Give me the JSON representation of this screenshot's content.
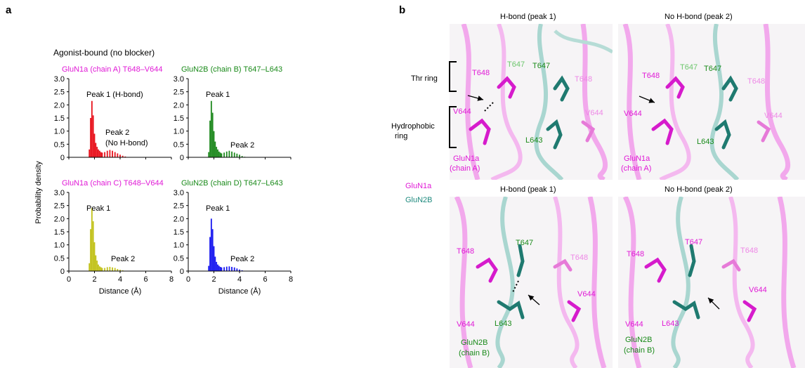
{
  "panel_a": {
    "letter": "a",
    "condition": "Agonist-bound (no blocker)",
    "ylabel": "Probability density",
    "xlabel": "Distance (Å)",
    "subplots": [
      {
        "title": "GluN1a (chain A) T648–V644",
        "color": "#e8141e",
        "title_color": "#e01ad6",
        "peak1_label": "Peak 1 (H-bond)",
        "peak2_label_line1": "Peak 2",
        "peak2_label_line2": "(No H-bond)"
      },
      {
        "title": "GluN2B (chain B) T647–L643",
        "color": "#208a20",
        "title_color": "#1a8a1a",
        "peak1_label": "Peak 1",
        "peak2_label_line1": "Peak 2",
        "peak2_label_line2": ""
      },
      {
        "title": "GluN1a (chain C) T648–V644",
        "color": "#c2c21c",
        "title_color": "#e01ad6",
        "peak1_label": "Peak 1",
        "peak2_label_line1": "Peak 2",
        "peak2_label_line2": ""
      },
      {
        "title": "GluN2B (chain D) T647–L643",
        "color": "#1a1af0",
        "title_color": "#1a8a1a",
        "peak1_label": "Peak 1",
        "peak2_label_line1": "Peak 2",
        "peak2_label_line2": ""
      }
    ],
    "y_ticks": [
      "0",
      "0.5",
      "1.0",
      "1.5",
      "2.0",
      "2.5",
      "3.0"
    ],
    "x_ticks": [
      "0",
      "2",
      "4",
      "6",
      "8"
    ]
  },
  "chart_data": [
    {
      "type": "bar",
      "title": "GluN1a (chain A) T648–V644",
      "xlabel": "Distance (Å)",
      "ylabel": "Probability density",
      "xlim": [
        0,
        8
      ],
      "ylim": [
        0,
        3.0
      ],
      "x": [
        1.6,
        1.7,
        1.8,
        1.9,
        2.0,
        2.1,
        2.2,
        2.3,
        2.4,
        2.5,
        2.6,
        2.8,
        3.0,
        3.2,
        3.4,
        3.6,
        3.8,
        4.0,
        4.2,
        4.4
      ],
      "values": [
        0.3,
        1.5,
        2.15,
        1.6,
        0.9,
        0.55,
        0.4,
        0.3,
        0.25,
        0.2,
        0.18,
        0.2,
        0.25,
        0.28,
        0.25,
        0.2,
        0.15,
        0.1,
        0.06,
        0.03
      ]
    },
    {
      "type": "bar",
      "title": "GluN2B (chain B) T647–L643",
      "xlabel": "Distance (Å)",
      "ylabel": "Probability density",
      "xlim": [
        0,
        8
      ],
      "ylim": [
        0,
        3.0
      ],
      "x": [
        1.6,
        1.7,
        1.8,
        1.9,
        2.0,
        2.1,
        2.2,
        2.3,
        2.4,
        2.5,
        2.6,
        2.8,
        3.0,
        3.2,
        3.4,
        3.6,
        3.8,
        4.0,
        4.2,
        4.4
      ],
      "values": [
        0.2,
        1.4,
        2.15,
        1.7,
        1.0,
        0.6,
        0.4,
        0.3,
        0.22,
        0.18,
        0.15,
        0.18,
        0.22,
        0.25,
        0.22,
        0.18,
        0.14,
        0.1,
        0.05,
        0.02
      ]
    },
    {
      "type": "bar",
      "title": "GluN1a (chain C) T648–V644",
      "xlabel": "Distance (Å)",
      "ylabel": "Probability density",
      "xlim": [
        0,
        8
      ],
      "ylim": [
        0,
        3.0
      ],
      "x": [
        1.6,
        1.7,
        1.8,
        1.9,
        2.0,
        2.1,
        2.2,
        2.3,
        2.4,
        2.5,
        2.6,
        2.8,
        3.0,
        3.2,
        3.4,
        3.6,
        3.8,
        4.0,
        4.2,
        4.4
      ],
      "values": [
        0.3,
        1.6,
        2.4,
        1.9,
        1.1,
        0.6,
        0.4,
        0.25,
        0.18,
        0.15,
        0.12,
        0.12,
        0.15,
        0.16,
        0.14,
        0.12,
        0.08,
        0.05,
        0.03,
        0.01
      ]
    },
    {
      "type": "bar",
      "title": "GluN2B (chain D) T647–L643",
      "xlabel": "Distance (Å)",
      "ylabel": "Probability density",
      "xlim": [
        0,
        8
      ],
      "ylim": [
        0,
        3.0
      ],
      "x": [
        1.6,
        1.7,
        1.8,
        1.9,
        2.0,
        2.1,
        2.2,
        2.3,
        2.4,
        2.5,
        2.6,
        2.8,
        3.0,
        3.2,
        3.4,
        3.6,
        3.8,
        4.0,
        4.2,
        4.4
      ],
      "values": [
        0.2,
        1.3,
        2.0,
        1.6,
        0.95,
        0.55,
        0.35,
        0.25,
        0.2,
        0.16,
        0.14,
        0.15,
        0.17,
        0.18,
        0.16,
        0.14,
        0.1,
        0.06,
        0.03,
        0.01
      ]
    }
  ],
  "panel_b": {
    "letter": "b",
    "titles": {
      "tl": "H-bond (peak 1)",
      "tr": "No H-bond (peak 2)",
      "bl": "H-bond (peak 1)",
      "br": "No H-bond (peak 2)"
    },
    "ring_labels": {
      "thr": "Thr ring",
      "hydro_line1": "Hydrophobic",
      "hydro_line2": "ring"
    },
    "legend": {
      "glun1a": "GluN1a",
      "glun2b": "GluN2B"
    },
    "top_residues": {
      "t648": "T648",
      "t647_faint": "T647",
      "t647": "T647",
      "t648_faint": "T648",
      "v644": "V644",
      "v644_faint": "V644",
      "l643": "L643",
      "chain_line1": "GluN1a",
      "chain_line2": "(chain A)"
    },
    "bottom_residues": {
      "t648": "T648",
      "t647": "T647",
      "t648_faint": "T648",
      "v644_right": "V644",
      "v644": "V644",
      "l643": "L643",
      "chain_line1": "GluN2B",
      "chain_line2": "(chain B)"
    },
    "colors": {
      "glun1a": "#e01ad6",
      "glun2b": "#1f8a7e",
      "glun2b_label": "#1a8a1a"
    }
  }
}
